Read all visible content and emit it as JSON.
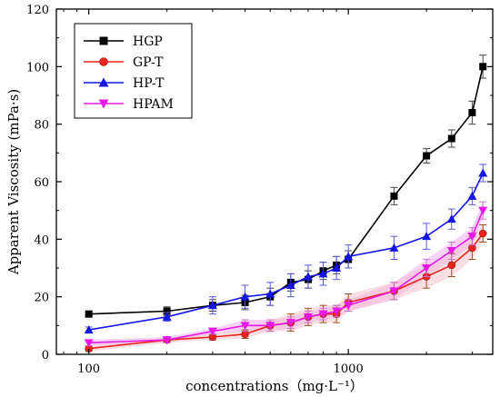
{
  "chart_data": {
    "type": "line",
    "xscale": "log",
    "xlabel": "concentrations（mg·L⁻¹）",
    "ylabel": "Apparent Viscosity (mPa·s)",
    "xlim": [
      75,
      3600
    ],
    "ylim": [
      0,
      120
    ],
    "xticks": [
      100,
      1000
    ],
    "xtick_labels": [
      "100",
      "1000"
    ],
    "yticks": [
      0,
      20,
      40,
      60,
      80,
      100,
      120
    ],
    "ytick_labels": [
      "0",
      "20",
      "40",
      "60",
      "80",
      "100",
      "120"
    ],
    "legend_position": "top-left",
    "grid": false,
    "series": [
      {
        "name": "HGP",
        "color": "#000000",
        "marker": "square",
        "x": [
          100,
          200,
          300,
          400,
          500,
          600,
          700,
          800,
          900,
          1000,
          1500,
          2000,
          2500,
          3000,
          3300
        ],
        "y": [
          14,
          15,
          17,
          18,
          20,
          25,
          26,
          29,
          31,
          33,
          55,
          69,
          75,
          84,
          100
        ],
        "err": [
          1,
          1.5,
          2,
          2.5,
          3,
          3,
          3,
          3,
          3,
          3,
          3,
          2.5,
          3,
          4,
          4
        ]
      },
      {
        "name": "GP-T",
        "color": "#e8241f",
        "marker": "circle",
        "x": [
          100,
          200,
          300,
          400,
          500,
          600,
          700,
          800,
          900,
          1000,
          1500,
          2000,
          2500,
          3000,
          3300
        ],
        "y": [
          2,
          5,
          6,
          7,
          10,
          11,
          13,
          14,
          14,
          18,
          22,
          27,
          31,
          37,
          42
        ],
        "err": [
          1,
          1,
          1,
          1.5,
          2,
          3,
          3,
          3,
          3,
          3,
          3,
          4,
          4,
          4,
          3
        ]
      },
      {
        "name": "HP-T",
        "color": "#1515e6",
        "marker": "triangle-up",
        "x": [
          100,
          200,
          300,
          400,
          500,
          600,
          700,
          800,
          900,
          1000,
          1500,
          2000,
          2500,
          3000,
          3300
        ],
        "y": [
          8.5,
          13,
          17,
          20,
          21,
          24,
          27,
          28,
          30,
          34,
          37,
          41,
          47,
          55,
          63
        ],
        "err": [
          1,
          1.5,
          3,
          4,
          4,
          4,
          4,
          4,
          4,
          4,
          4,
          4.5,
          3.5,
          3,
          3
        ]
      },
      {
        "name": "HPAM",
        "color": "#e619e6",
        "marker": "triangle-down",
        "x": [
          100,
          200,
          300,
          400,
          500,
          600,
          700,
          800,
          900,
          1000,
          1500,
          2000,
          2500,
          3000,
          3300
        ],
        "y": [
          4,
          5,
          8,
          10,
          10,
          11,
          13,
          14,
          15,
          17,
          22,
          30,
          36,
          41,
          50
        ],
        "err": [
          1,
          1,
          1,
          2,
          2,
          2,
          2,
          2,
          2,
          2,
          3,
          3,
          3,
          3,
          3
        ]
      }
    ]
  }
}
